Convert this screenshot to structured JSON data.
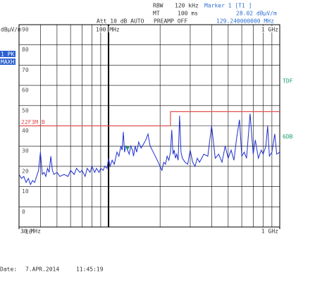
{
  "header": {
    "rbw_label": "RBW",
    "rbw": "120 kHz",
    "mt_label": "MT",
    "mt": "100 ms",
    "att": "Att 10 dB AUTO",
    "preamp": "PREAMP OFF"
  },
  "chart_data": {
    "type": "line",
    "log_x": true,
    "grid": true,
    "ylabel": "dBµV/m",
    "trace_labels": [
      "1 PK",
      "MAXH"
    ],
    "right_labels": [
      "TDF",
      "6DB"
    ],
    "xlim": [
      30,
      1000
    ],
    "xticks": [
      {
        "value": 30,
        "label": "30 MHz"
      },
      {
        "value": 1000,
        "label": "1 GHz"
      }
    ],
    "top_xticks": [
      {
        "value": 100,
        "label": "100 MHz"
      },
      {
        "value": 1000,
        "label": "1 GHz"
      }
    ],
    "xgrid": [
      40,
      50,
      60,
      70,
      80,
      90,
      100,
      200,
      300,
      400,
      500,
      600,
      700,
      800,
      900
    ],
    "ylim": [
      -10,
      90
    ],
    "yticks": [
      90,
      80,
      70,
      60,
      50,
      40,
      30,
      20,
      10,
      0,
      -10
    ],
    "marker": {
      "label": "Marker 1 [T1 ]",
      "value_label": "28.02 dBµV/m",
      "freq_label": "129.240000000 MHz",
      "x": 129.24,
      "y": 28.02,
      "color": "#1aa06a"
    },
    "series": [
      {
        "name": "22F3M_B",
        "color": "#e05050",
        "x": [
          30,
          230,
          230,
          1000
        ],
        "values": [
          40,
          40,
          47,
          47
        ]
      },
      {
        "color": "#1f2fd0",
        "x": [
          30,
          31,
          32,
          33,
          34,
          35,
          36,
          37,
          38,
          39,
          40,
          41,
          42,
          43,
          44,
          45,
          46,
          47,
          48,
          50,
          52,
          55,
          58,
          60,
          63,
          65,
          68,
          70,
          73,
          75,
          78,
          80,
          83,
          85,
          88,
          90,
          93,
          95,
          98,
          100,
          102,
          105,
          108,
          110,
          112,
          115,
          118,
          120,
          122,
          124,
          126,
          129.24,
          132,
          135,
          138,
          140,
          143,
          146,
          150,
          155,
          160,
          165,
          170,
          175,
          180,
          185,
          190,
          195,
          200,
          205,
          210,
          215,
          220,
          225,
          230,
          234,
          238,
          242,
          246,
          250,
          255,
          260,
          265,
          270,
          280,
          290,
          300,
          310,
          320,
          330,
          340,
          360,
          380,
          400,
          420,
          440,
          460,
          480,
          500,
          520,
          540,
          560,
          582,
          600,
          620,
          640,
          671,
          700,
          720,
          750,
          780,
          800,
          830,
          850,
          870,
          900,
          935,
          960,
          1000
        ],
        "values": [
          16,
          14,
          15,
          12,
          14,
          11,
          13,
          12,
          15,
          18,
          27,
          16,
          17,
          15,
          19,
          17,
          25,
          18,
          16,
          17,
          15,
          16,
          15,
          18,
          16,
          19,
          17,
          18,
          15,
          19,
          17,
          20,
          17,
          19,
          17,
          19,
          18,
          20,
          19,
          24,
          20,
          23,
          21,
          24,
          27,
          25,
          30,
          28,
          37,
          27,
          30,
          28,
          26,
          30,
          28,
          25,
          30,
          27,
          32,
          29,
          31,
          33,
          36,
          30,
          28,
          26,
          24,
          22,
          20,
          18,
          22,
          21,
          25,
          23,
          27,
          38,
          26,
          28,
          24,
          26,
          23,
          45,
          27,
          24,
          22,
          21,
          28,
          22,
          20,
          24,
          22,
          26,
          25,
          40,
          24,
          26,
          22,
          30,
          24,
          28,
          23,
          34,
          43,
          25,
          27,
          24,
          46,
          26,
          33,
          24,
          28,
          26,
          30,
          40,
          25,
          27,
          36,
          26,
          27
        ]
      }
    ]
  },
  "footer": {
    "date_label": "Date:",
    "date": "7.APR.2014",
    "time": "11:45:19"
  }
}
